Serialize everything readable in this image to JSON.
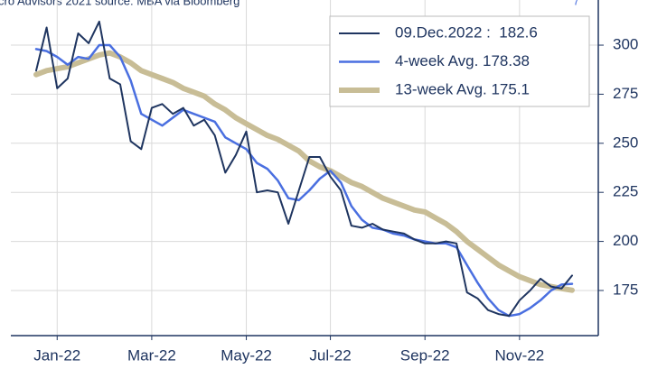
{
  "chart_data": {
    "type": "line",
    "source": "cro Advisors 2021 source: MBA via Bloomberg",
    "corner_mark": "7",
    "categories": [
      null,
      null,
      "Jan-22",
      null,
      null,
      null,
      null,
      null,
      null,
      null,
      null,
      "Mar-22",
      null,
      null,
      null,
      null,
      null,
      null,
      null,
      null,
      "May-22",
      null,
      null,
      null,
      null,
      null,
      null,
      null,
      "Jul-22",
      null,
      null,
      null,
      null,
      null,
      null,
      null,
      null,
      "Sep-22",
      null,
      null,
      null,
      null,
      null,
      null,
      null,
      null,
      "Nov-22",
      null,
      null,
      null,
      null,
      null
    ],
    "series": [
      {
        "name": "09.Dec.2022 :  182.6",
        "color": "#1f3560",
        "line_width": 2,
        "values": [
          287,
          309,
          278,
          283,
          306,
          301,
          312,
          283,
          280,
          251,
          247,
          268,
          270,
          265,
          268,
          259,
          262,
          254,
          235,
          244,
          256,
          225,
          226,
          225,
          209,
          226,
          243,
          243,
          233,
          226,
          208,
          207,
          209,
          206,
          205,
          204,
          201,
          199,
          199,
          200,
          199,
          174,
          171,
          165,
          163,
          162,
          170,
          175,
          181,
          177,
          176,
          182.6
        ]
      },
      {
        "name": "4-week Avg. 178.38",
        "color": "#4a6fe0",
        "line_width": 2.5,
        "values": [
          298,
          297,
          294,
          290,
          294,
          293,
          300,
          300,
          294,
          282,
          265,
          262,
          259,
          263,
          267,
          265,
          263,
          261,
          253,
          250,
          247,
          240,
          237,
          231,
          222,
          221,
          226,
          232,
          236,
          230,
          218,
          211,
          207,
          206,
          204,
          203,
          201,
          200,
          199,
          199,
          197,
          188,
          179,
          171,
          165,
          162,
          163,
          166,
          170,
          175,
          178,
          178.38
        ]
      },
      {
        "name": "13-week Avg. 175.1",
        "color": "#c8bd96",
        "line_width": 6,
        "values": [
          285,
          287,
          288,
          289,
          291,
          293,
          295,
          296,
          294,
          291,
          287,
          285,
          283,
          281,
          278,
          276,
          274,
          270,
          267,
          263,
          260,
          257,
          254,
          252,
          249,
          246,
          241,
          238,
          236,
          233,
          230,
          228,
          225,
          222,
          220,
          218,
          216,
          215,
          212,
          209,
          205,
          200,
          196,
          192,
          188,
          185,
          182,
          180,
          178,
          177,
          176,
          175.1
        ]
      }
    ],
    "ylim": [
      152,
      323
    ],
    "yticks": [
      175,
      200,
      225,
      250,
      275,
      300
    ],
    "grid": true,
    "legend": "upper right"
  }
}
